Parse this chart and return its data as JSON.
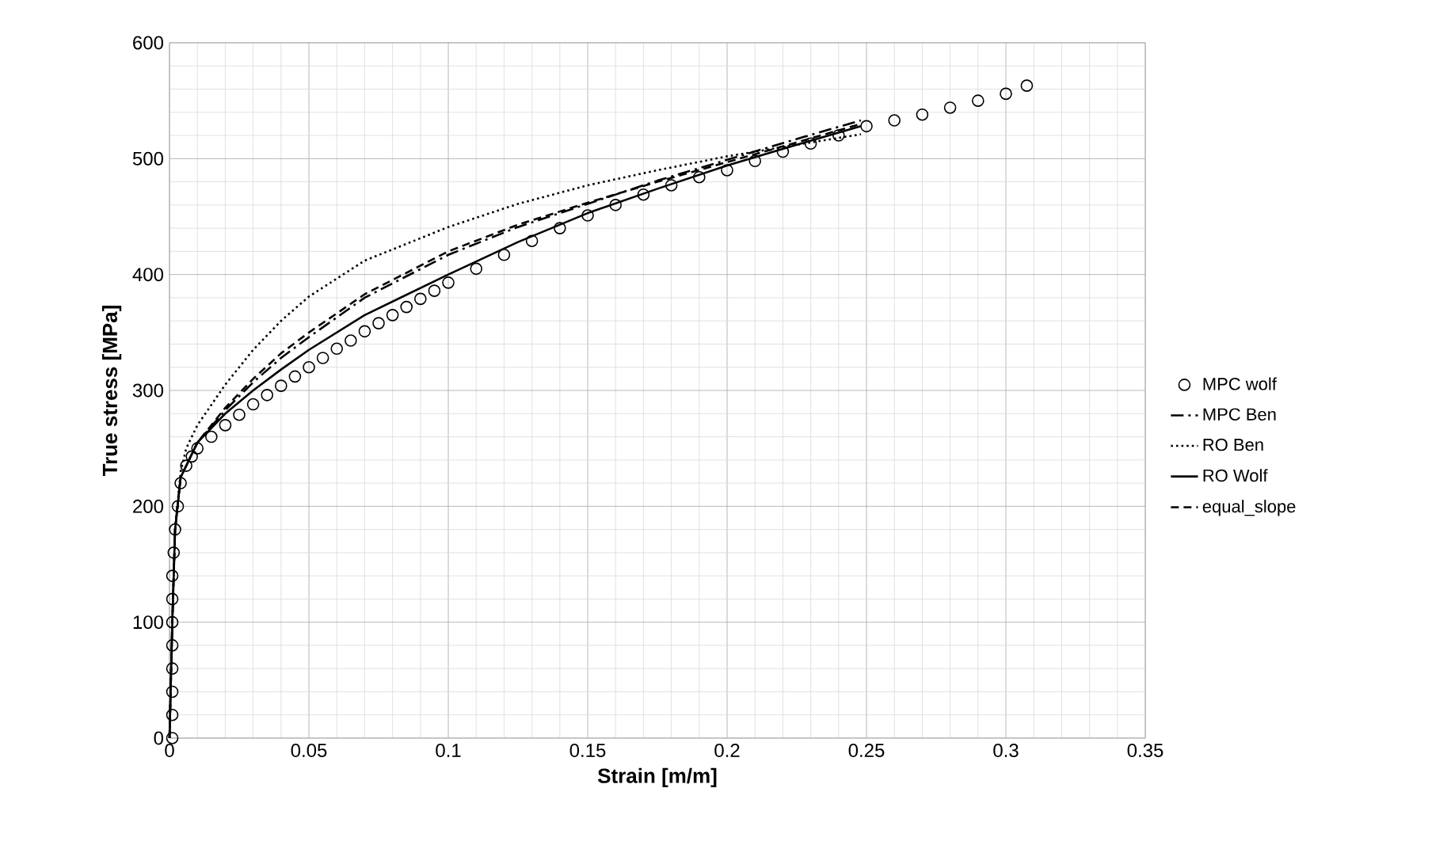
{
  "chart_data": {
    "type": "line",
    "xlabel": "Strain [m/m]",
    "ylabel": "True stress [MPa]",
    "xlim": [
      0,
      0.35
    ],
    "xticks": [
      0,
      0.05,
      0.1,
      0.15,
      0.2,
      0.25,
      0.3,
      0.35
    ],
    "ylim": [
      0,
      600
    ],
    "yticks": [
      0,
      100,
      200,
      300,
      400,
      500,
      600
    ],
    "grid": true,
    "legend": "right",
    "series": [
      {
        "name": "MPC wolf",
        "type": "scatter",
        "marker": "circle",
        "color": "#000000",
        "x": [
          0.001,
          0.001,
          0.001,
          0.001,
          0.001,
          0.001,
          0.001,
          0.001,
          0.0015,
          0.002,
          0.003,
          0.004,
          0.006,
          0.008,
          0.01,
          0.015,
          0.02,
          0.025,
          0.03,
          0.035,
          0.04,
          0.045,
          0.05,
          0.055,
          0.06,
          0.065,
          0.07,
          0.075,
          0.08,
          0.085,
          0.09,
          0.095,
          0.1,
          0.11,
          0.12,
          0.13,
          0.14,
          0.15,
          0.16,
          0.17,
          0.18,
          0.19,
          0.2,
          0.21,
          0.22,
          0.23,
          0.24,
          0.25,
          0.26,
          0.27,
          0.28,
          0.29,
          0.3,
          0.3075
        ],
        "values": [
          0,
          20,
          40,
          60,
          80,
          100,
          120,
          140,
          160,
          180,
          200,
          220,
          235,
          243,
          250,
          260,
          270,
          279,
          288,
          296,
          304,
          312,
          320,
          328,
          336,
          343,
          351,
          358,
          365,
          372,
          379,
          386,
          393,
          405,
          417,
          429,
          440,
          451,
          460,
          469,
          477,
          484,
          490,
          498,
          506,
          513,
          520,
          528,
          533,
          538,
          544,
          550,
          556,
          563
        ]
      },
      {
        "name": "MPC Ben",
        "line_style": "dashdot",
        "color": "#000000",
        "x": [
          0,
          0.001,
          0.002,
          0.004,
          0.01,
          0.02,
          0.03,
          0.04,
          0.05,
          0.07,
          0.1,
          0.125,
          0.15,
          0.175,
          0.2,
          0.225,
          0.248
        ],
        "values": [
          0,
          100,
          180,
          225,
          255,
          283,
          307,
          328,
          346,
          380,
          417,
          441,
          461,
          481,
          499,
          517,
          533
        ]
      },
      {
        "name": "RO Ben",
        "line_style": "dotted",
        "color": "#000000",
        "x": [
          0,
          0.001,
          0.002,
          0.004,
          0.006,
          0.01,
          0.02,
          0.03,
          0.04,
          0.05,
          0.07,
          0.1,
          0.125,
          0.15,
          0.175,
          0.2,
          0.225,
          0.248
        ],
        "values": [
          0,
          100,
          180,
          230,
          250,
          270,
          305,
          335,
          360,
          381,
          412,
          441,
          461,
          477,
          490,
          502,
          512,
          521
        ]
      },
      {
        "name": "RO Wolf",
        "line_style": "solid",
        "color": "#000000",
        "x": [
          0,
          0.001,
          0.002,
          0.004,
          0.01,
          0.02,
          0.03,
          0.04,
          0.05,
          0.07,
          0.1,
          0.125,
          0.15,
          0.175,
          0.2,
          0.225,
          0.248
        ],
        "values": [
          0,
          100,
          180,
          225,
          255,
          280,
          300,
          318,
          335,
          365,
          400,
          428,
          453,
          474,
          494,
          512,
          528
        ]
      },
      {
        "name": "equal_slope",
        "line_style": "dashed",
        "color": "#000000",
        "x": [
          0,
          0.001,
          0.002,
          0.004,
          0.01,
          0.02,
          0.03,
          0.04,
          0.05,
          0.07,
          0.1,
          0.125,
          0.15,
          0.175,
          0.2,
          0.225,
          0.248
        ],
        "values": [
          0,
          100,
          180,
          225,
          255,
          285,
          310,
          332,
          350,
          383,
          420,
          443,
          462,
          480,
          497,
          514,
          530
        ]
      }
    ]
  }
}
